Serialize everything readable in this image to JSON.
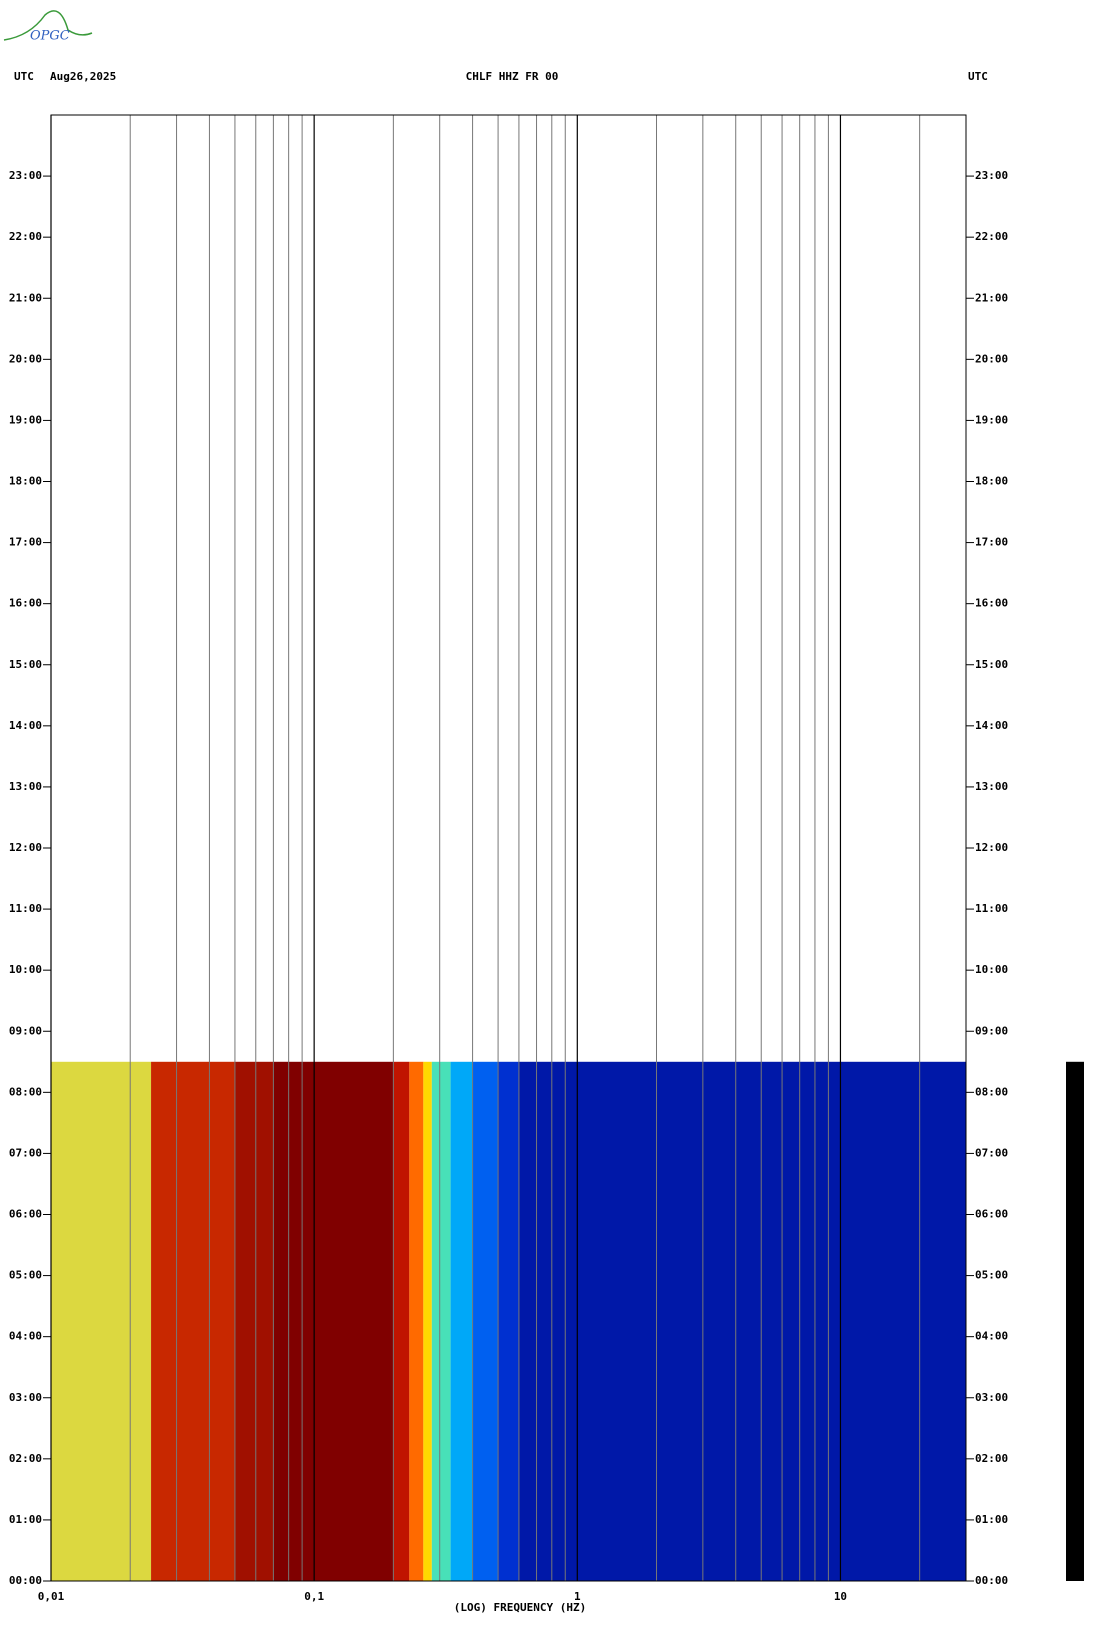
{
  "chart_data": {
    "type": "spectrogram",
    "logo": "OPGC",
    "left_zone": "UTC",
    "date": "Aug26,2025",
    "title": "CHLF HHZ FR 00",
    "right_zone": "UTC",
    "xlabel": "(LOG) FREQUENCY (HZ)",
    "xscale": "log",
    "xlim": [
      0.01,
      30
    ],
    "ylim": [
      0,
      24
    ],
    "xticks": [
      {
        "value": 0.01,
        "label": "0,01"
      },
      {
        "value": 0.1,
        "label": "0,1"
      },
      1,
      10
    ],
    "xgrid": [
      0.02,
      0.03,
      0.04,
      0.05,
      0.06,
      0.07,
      0.08,
      0.09,
      0.2,
      0.3,
      0.4,
      0.5,
      0.6,
      0.7,
      0.8,
      0.9,
      2,
      3,
      4,
      5,
      6,
      7,
      8,
      9,
      20
    ],
    "yticks": [
      {
        "value": 0,
        "label": "00:00"
      },
      {
        "value": 1,
        "label": "01:00"
      },
      {
        "value": 2,
        "label": "02:00"
      },
      {
        "value": 3,
        "label": "03:00"
      },
      {
        "value": 4,
        "label": "04:00"
      },
      {
        "value": 5,
        "label": "05:00"
      },
      {
        "value": 6,
        "label": "06:00"
      },
      {
        "value": 7,
        "label": "07:00"
      },
      {
        "value": 8,
        "label": "08:00"
      },
      {
        "value": 9,
        "label": "09:00"
      },
      {
        "value": 10,
        "label": "10:00"
      },
      {
        "value": 11,
        "label": "11:00"
      },
      {
        "value": 12,
        "label": "12:00"
      },
      {
        "value": 13,
        "label": "13:00"
      },
      {
        "value": 14,
        "label": "14:00"
      },
      {
        "value": 15,
        "label": "15:00"
      },
      {
        "value": 16,
        "label": "16:00"
      },
      {
        "value": 17,
        "label": "17:00"
      },
      {
        "value": 18,
        "label": "18:00"
      },
      {
        "value": 19,
        "label": "19:00"
      },
      {
        "value": 20,
        "label": "20:00"
      },
      {
        "value": 21,
        "label": "21:00"
      },
      {
        "value": 22,
        "label": "22:00"
      },
      {
        "value": 23,
        "label": "23:00"
      }
    ],
    "data_end": 8.5,
    "bands": [
      {
        "from": 0.01,
        "to": 0.024,
        "color": "#dcd840"
      },
      {
        "from": 0.024,
        "to": 0.05,
        "color": "#c82800"
      },
      {
        "from": 0.05,
        "to": 0.07,
        "color": "#a01000"
      },
      {
        "from": 0.07,
        "to": 0.2,
        "color": "#800000"
      },
      {
        "from": 0.2,
        "to": 0.23,
        "color": "#c01400"
      },
      {
        "from": 0.23,
        "to": 0.26,
        "color": "#ff6a00"
      },
      {
        "from": 0.26,
        "to": 0.28,
        "color": "#ffd800"
      },
      {
        "from": 0.28,
        "to": 0.33,
        "color": "#48e0b8"
      },
      {
        "from": 0.33,
        "to": 0.4,
        "color": "#00a8f8"
      },
      {
        "from": 0.4,
        "to": 0.5,
        "color": "#0060f0"
      },
      {
        "from": 0.5,
        "to": 0.6,
        "color": "#0030d0"
      },
      {
        "from": 0.6,
        "to": 30,
        "color": "#0018a8"
      }
    ]
  }
}
